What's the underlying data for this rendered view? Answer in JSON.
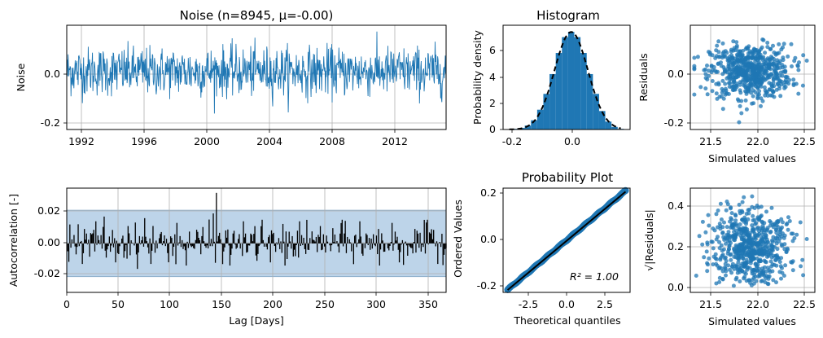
{
  "chart_data": [
    {
      "id": "noise",
      "type": "line",
      "title": "Noise (n=8945, μ=-0.00)",
      "xlabel": "",
      "ylabel": "Noise",
      "x_tick_labels": [
        "1992",
        "1996",
        "2000",
        "2004",
        "2008",
        "2012"
      ],
      "y_tick_labels": [
        "-0.2",
        "0.0"
      ],
      "xlim": [
        "1991-01-01",
        "2015-06-30"
      ],
      "ylim": [
        -0.24,
        0.19
      ],
      "grid": true,
      "color": "#1f77b4",
      "summary": {
        "n": 8945,
        "mean": 0.0,
        "typical_range": [
          -0.1,
          0.1
        ],
        "min": -0.21,
        "max": 0.17
      }
    },
    {
      "id": "histogram",
      "type": "bar",
      "title": "Histogram",
      "xlabel": "",
      "ylabel": "Probability density",
      "x_tick_labels": [
        "-0.2",
        "0.0"
      ],
      "y_tick_labels": [
        "0",
        "2",
        "4",
        "6"
      ],
      "xlim": [
        -0.22,
        0.19
      ],
      "ylim": [
        0,
        7.9
      ],
      "grid": false,
      "color": "#1f77b4",
      "fit_line_color": "#000000",
      "bins_center": [
        -0.2,
        -0.18,
        -0.16,
        -0.14,
        -0.12,
        -0.1,
        -0.08,
        -0.06,
        -0.04,
        -0.02,
        0.0,
        0.02,
        0.04,
        0.06,
        0.08,
        0.1,
        0.12,
        0.14,
        0.16
      ],
      "density": [
        0.02,
        0.05,
        0.12,
        0.3,
        0.7,
        1.5,
        2.7,
        4.2,
        5.8,
        7.0,
        7.4,
        7.0,
        5.8,
        4.2,
        2.7,
        1.4,
        0.6,
        0.2,
        0.05
      ],
      "normal_fit": {
        "mean": 0.0,
        "std": 0.054
      }
    },
    {
      "id": "residuals",
      "type": "scatter",
      "title": "",
      "xlabel": "Simulated values",
      "ylabel": "Residuals",
      "x_tick_labels": [
        "21.5",
        "22.0",
        "22.5"
      ],
      "y_tick_labels": [
        "-0.2",
        "0.0"
      ],
      "xlim": [
        21.15,
        22.7
      ],
      "ylim": [
        -0.24,
        0.19
      ],
      "grid": true,
      "color": "#1f77b4",
      "summary": {
        "x_range": [
          21.2,
          22.6
        ],
        "y_range": [
          -0.21,
          0.17
        ]
      }
    },
    {
      "id": "autocorrelation",
      "type": "bar",
      "title": "",
      "xlabel": "Lag [Days]",
      "ylabel": "Autocorrelation [-]",
      "x_tick_labels": [
        "0",
        "50",
        "100",
        "150",
        "200",
        "250",
        "300",
        "350"
      ],
      "y_tick_labels": [
        "-0.02",
        "0.00",
        "0.02"
      ],
      "xlim": [
        0,
        365
      ],
      "ylim": [
        -0.031,
        0.035
      ],
      "grid": true,
      "color": "#000000",
      "band_color": "#a7c6e2",
      "confidence_band": [
        -0.021,
        0.021
      ],
      "spikes": [
        [
          3,
          0.012
        ],
        [
          15,
          -0.013
        ],
        [
          28,
          0.014
        ],
        [
          36,
          0.017
        ],
        [
          47,
          -0.012
        ],
        [
          59,
          0.011
        ],
        [
          75,
          0.016
        ],
        [
          81,
          -0.013
        ],
        [
          106,
          0.013
        ],
        [
          115,
          -0.014
        ],
        [
          141,
          0.019
        ],
        [
          144,
          0.032
        ],
        [
          157,
          -0.014
        ],
        [
          170,
          0.014
        ],
        [
          188,
          0.015
        ],
        [
          196,
          -0.012
        ],
        [
          210,
          -0.014
        ],
        [
          224,
          0.014
        ],
        [
          244,
          0.011
        ],
        [
          265,
          0.015
        ],
        [
          282,
          0.014
        ],
        [
          301,
          -0.014
        ],
        [
          313,
          0.013
        ],
        [
          320,
          -0.012
        ],
        [
          347,
          0.015
        ],
        [
          357,
          -0.013
        ]
      ]
    },
    {
      "id": "probability-plot",
      "type": "scatter",
      "title": "Probability Plot",
      "xlabel": "Theoretical quantiles",
      "ylabel": "Ordered Values",
      "x_tick_labels": [
        "-2.5",
        "0.0",
        "2.5"
      ],
      "y_tick_labels": [
        "-0.2",
        "0.0",
        "0.2"
      ],
      "xlim": [
        -4.2,
        4.2
      ],
      "ylim": [
        -0.22,
        0.22
      ],
      "grid": false,
      "color": "#1f77b4",
      "fit_line_color": "#000000",
      "annotation": "R² = 1.00",
      "fit_line": {
        "x": [
          -3.9,
          3.9
        ],
        "y": [
          -0.21,
          0.205
        ]
      }
    },
    {
      "id": "sqrt-residuals",
      "type": "scatter",
      "title": "",
      "xlabel": "Simulated values",
      "ylabel": "√|Residuals|",
      "x_tick_labels": [
        "21.5",
        "22.0",
        "22.5"
      ],
      "y_tick_labels": [
        "0.0",
        "0.2",
        "0.4"
      ],
      "xlim": [
        21.15,
        22.7
      ],
      "ylim": [
        -0.02,
        0.47
      ],
      "grid": true,
      "color": "#1f77b4",
      "summary": {
        "x_range": [
          21.2,
          22.6
        ],
        "y_range": [
          0.0,
          0.45
        ]
      }
    }
  ]
}
